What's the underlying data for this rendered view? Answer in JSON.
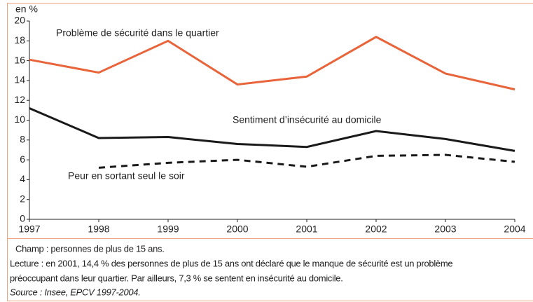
{
  "chart_data": {
    "type": "line",
    "y_axis_label": "en %",
    "x": [
      1997,
      1998,
      1999,
      2000,
      2001,
      2002,
      2003,
      2004
    ],
    "xlim": [
      1997,
      2004
    ],
    "xticks": [
      1997,
      1998,
      1999,
      2000,
      2001,
      2002,
      2003,
      2004
    ],
    "ylim": [
      0,
      20
    ],
    "yticks": [
      0,
      2,
      4,
      6,
      8,
      10,
      12,
      14,
      16,
      18,
      20
    ],
    "grid": false,
    "series": [
      {
        "name": "Problème de sécurité dans le quartier",
        "color": "#e8643a",
        "dash": false,
        "values": [
          16.1,
          14.8,
          18.0,
          13.6,
          14.4,
          18.4,
          14.7,
          13.1
        ]
      },
      {
        "name": "Sentiment d’insécurité au domicile",
        "color": "#1a1a1a",
        "dash": false,
        "values": [
          11.2,
          8.2,
          8.3,
          7.6,
          7.3,
          8.9,
          8.1,
          6.9
        ]
      },
      {
        "name": "Peur en sortant seul le soir",
        "color": "#1a1a1a",
        "dash": true,
        "values": [
          null,
          5.2,
          5.7,
          6.0,
          5.3,
          6.4,
          6.5,
          5.8
        ]
      }
    ]
  },
  "notes": [
    "Champ :  personnes de plus de 15 ans.",
    "Lecture : en 2001, 14,4 % des personnes de plus de 15 ans ont déclaré que le manque de sécurité est un problème",
    "préoccupant dans leur quartier. Par ailleurs, 7,3 % se sentent en insécurité au domicile."
  ],
  "source": "Source : Insee, EPCV 1997-2004."
}
